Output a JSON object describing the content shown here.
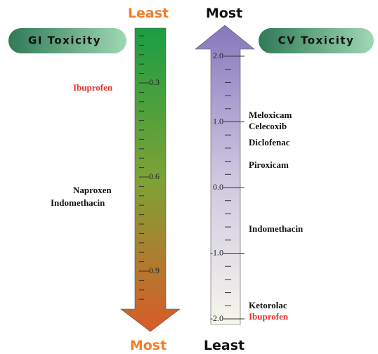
{
  "gi": {
    "badge": "GI Toxicity",
    "top_label": "Least",
    "bottom_label": "Most",
    "ticks": [
      0.3,
      0.6,
      0.9
    ],
    "drugs": [
      "Ibuprofen",
      "Naproxen",
      "Indomethacin"
    ]
  },
  "cv": {
    "badge": "CV Toxicity",
    "top_label": "Most",
    "bottom_label": "Least",
    "ticks": [
      {
        "value": 2,
        "label": "2.0"
      },
      {
        "value": 1,
        "label": "1.0"
      },
      {
        "value": 0,
        "label": "0.0"
      },
      {
        "value": -1,
        "label": "-1.0"
      },
      {
        "value": -2,
        "label": "-2.0"
      }
    ],
    "drugs": [
      "Meloxicam",
      "Celecoxib",
      "Diclofenac",
      "Piroxicam",
      "Indomethacin",
      "Ketorolac",
      "Ibuprofen"
    ]
  }
}
